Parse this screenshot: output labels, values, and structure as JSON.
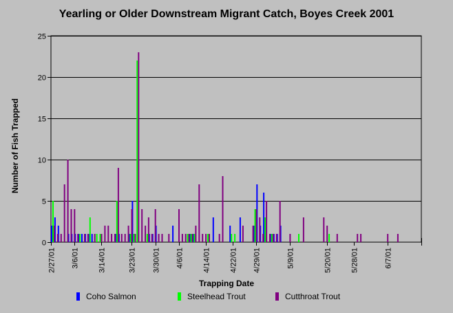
{
  "chart_data": {
    "type": "bar",
    "title": "Yearling or Older Downstream Migrant Catch, Boyes Creek 2001",
    "xlabel": "Trapping Date",
    "ylabel": "Number of Fish Trapped",
    "ylim": [
      0,
      25
    ],
    "yticks": [
      0,
      5,
      10,
      15,
      20,
      25
    ],
    "xlim": [
      "2001-02-27",
      "2001-06-17"
    ],
    "xticks": [
      "2/27/01",
      "3/6/01",
      "3/14/01",
      "3/23/01",
      "3/30/01",
      "4/6/01",
      "4/14/01",
      "4/22/01",
      "4/29/01",
      "5/9/01",
      "5/20/01",
      "5/28/01",
      "6/7/01"
    ],
    "xtick_dates": [
      "2001-02-27",
      "2001-03-06",
      "2001-03-14",
      "2001-03-23",
      "2001-03-30",
      "2001-04-06",
      "2001-04-14",
      "2001-04-22",
      "2001-04-29",
      "2001-05-09",
      "2001-05-20",
      "2001-05-28",
      "2001-06-07"
    ],
    "grid": "horizontal",
    "legend_position": "bottom",
    "series": [
      {
        "name": "Coho Salmon",
        "color": "#0000ff",
        "points": [
          [
            "2001-02-27",
            2
          ],
          [
            "2001-02-28",
            3
          ],
          [
            "2001-03-01",
            2
          ],
          [
            "2001-03-04",
            1
          ],
          [
            "2001-03-05",
            1
          ],
          [
            "2001-03-06",
            1
          ],
          [
            "2001-03-07",
            1
          ],
          [
            "2001-03-08",
            1
          ],
          [
            "2001-03-09",
            1
          ],
          [
            "2001-03-10",
            1
          ],
          [
            "2001-03-11",
            1
          ],
          [
            "2001-03-18",
            1
          ],
          [
            "2001-03-19",
            1
          ],
          [
            "2001-03-22",
            1
          ],
          [
            "2001-03-23",
            5
          ],
          [
            "2001-03-28",
            1
          ],
          [
            "2001-03-29",
            1
          ],
          [
            "2001-03-30",
            2
          ],
          [
            "2001-04-04",
            2
          ],
          [
            "2001-04-09",
            1
          ],
          [
            "2001-04-10",
            1
          ],
          [
            "2001-04-16",
            3
          ],
          [
            "2001-04-21",
            2
          ],
          [
            "2001-04-24",
            3
          ],
          [
            "2001-04-28",
            2
          ],
          [
            "2001-04-29",
            7
          ],
          [
            "2001-04-30",
            2
          ],
          [
            "2001-05-01",
            6
          ],
          [
            "2001-05-03",
            1
          ],
          [
            "2001-05-04",
            1
          ],
          [
            "2001-05-05",
            1
          ],
          [
            "2001-05-06",
            2
          ]
        ]
      },
      {
        "name": "Steelhead Trout",
        "color": "#00ff00",
        "points": [
          [
            "2001-02-27",
            5
          ],
          [
            "2001-03-07",
            1
          ],
          [
            "2001-03-10",
            3
          ],
          [
            "2001-03-12",
            1
          ],
          [
            "2001-03-13",
            1
          ],
          [
            "2001-03-18",
            5
          ],
          [
            "2001-03-22",
            1
          ],
          [
            "2001-03-23",
            1
          ],
          [
            "2001-03-24",
            22
          ],
          [
            "2001-03-27",
            1
          ],
          [
            "2001-04-08",
            1
          ],
          [
            "2001-04-09",
            1
          ],
          [
            "2001-04-10",
            1
          ],
          [
            "2001-04-14",
            1
          ],
          [
            "2001-04-21",
            1
          ],
          [
            "2001-04-22",
            1
          ],
          [
            "2001-04-28",
            4
          ],
          [
            "2001-05-01",
            3
          ],
          [
            "2001-05-03",
            1
          ],
          [
            "2001-05-11",
            1
          ],
          [
            "2001-05-20",
            1
          ]
        ]
      },
      {
        "name": "Cutthroat Trout",
        "color": "#800080",
        "points": [
          [
            "2001-02-27",
            2
          ],
          [
            "2001-02-28",
            1
          ],
          [
            "2001-03-01",
            1
          ],
          [
            "2001-03-02",
            7
          ],
          [
            "2001-03-03",
            10
          ],
          [
            "2001-03-04",
            4
          ],
          [
            "2001-03-05",
            4
          ],
          [
            "2001-03-06",
            1
          ],
          [
            "2001-03-08",
            1
          ],
          [
            "2001-03-09",
            1
          ],
          [
            "2001-03-11",
            1
          ],
          [
            "2001-03-13",
            1
          ],
          [
            "2001-03-14",
            2
          ],
          [
            "2001-03-15",
            2
          ],
          [
            "2001-03-16",
            1
          ],
          [
            "2001-03-17",
            1
          ],
          [
            "2001-03-18",
            9
          ],
          [
            "2001-03-19",
            1
          ],
          [
            "2001-03-20",
            1
          ],
          [
            "2001-03-21",
            2
          ],
          [
            "2001-03-22",
            4
          ],
          [
            "2001-03-23",
            1
          ],
          [
            "2001-03-24",
            23
          ],
          [
            "2001-03-25",
            4
          ],
          [
            "2001-03-26",
            2
          ],
          [
            "2001-03-27",
            3
          ],
          [
            "2001-03-28",
            1
          ],
          [
            "2001-03-29",
            4
          ],
          [
            "2001-03-30",
            1
          ],
          [
            "2001-03-31",
            1
          ],
          [
            "2001-04-02",
            1
          ],
          [
            "2001-04-05",
            4
          ],
          [
            "2001-04-06",
            1
          ],
          [
            "2001-04-07",
            1
          ],
          [
            "2001-04-08",
            1
          ],
          [
            "2001-04-09",
            1
          ],
          [
            "2001-04-10",
            2
          ],
          [
            "2001-04-11",
            7
          ],
          [
            "2001-04-12",
            1
          ],
          [
            "2001-04-13",
            1
          ],
          [
            "2001-04-14",
            1
          ],
          [
            "2001-04-17",
            1
          ],
          [
            "2001-04-18",
            8
          ],
          [
            "2001-04-24",
            2
          ],
          [
            "2001-04-27",
            2
          ],
          [
            "2001-04-28",
            4
          ],
          [
            "2001-04-29",
            3
          ],
          [
            "2001-04-30",
            1
          ],
          [
            "2001-05-01",
            5
          ],
          [
            "2001-05-02",
            1
          ],
          [
            "2001-05-03",
            1
          ],
          [
            "2001-05-04",
            1
          ],
          [
            "2001-05-05",
            5
          ],
          [
            "2001-05-08",
            1
          ],
          [
            "2001-05-12",
            3
          ],
          [
            "2001-05-18",
            3
          ],
          [
            "2001-05-19",
            2
          ],
          [
            "2001-05-22",
            1
          ],
          [
            "2001-05-28",
            1
          ],
          [
            "2001-05-29",
            1
          ],
          [
            "2001-06-06",
            1
          ],
          [
            "2001-06-09",
            1
          ]
        ]
      }
    ]
  }
}
